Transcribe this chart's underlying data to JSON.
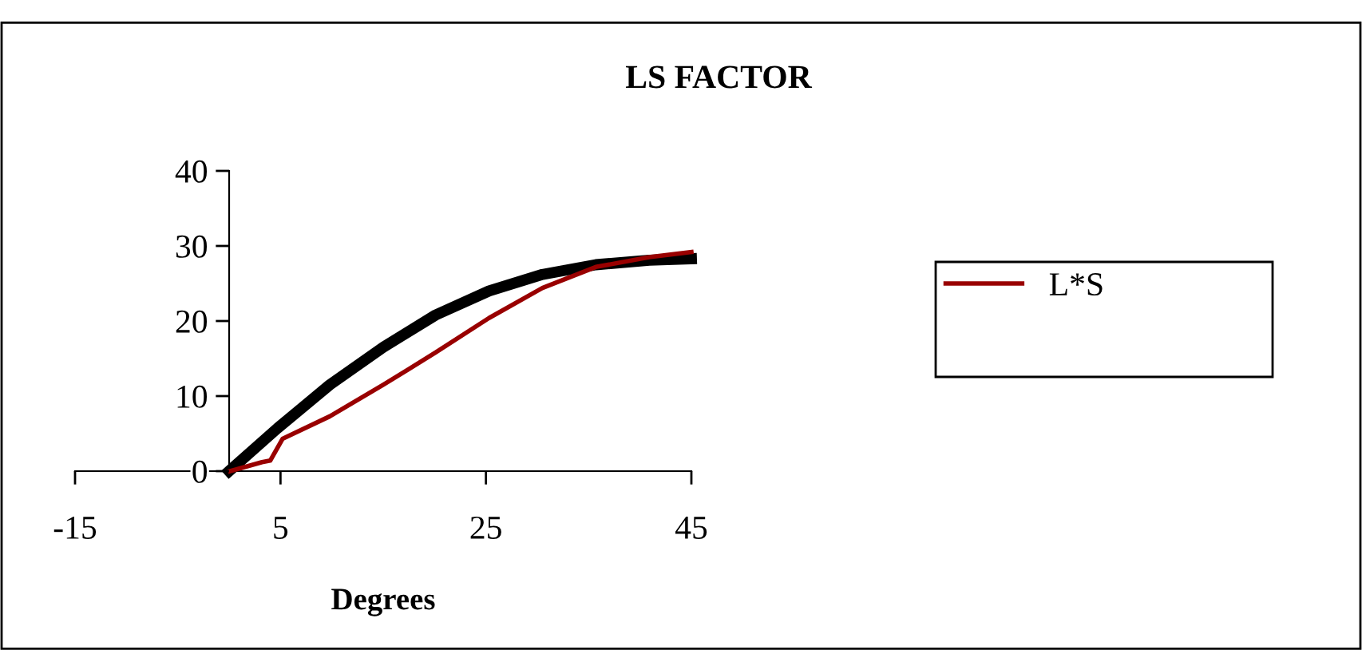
{
  "chart_data": {
    "type": "line",
    "title": "LS FACTOR",
    "xlabel": "Degrees",
    "xlim": [
      -15,
      45
    ],
    "xticks": [
      -15,
      5,
      25,
      45
    ],
    "ylim": [
      0,
      40
    ],
    "yticks": [
      0,
      10,
      20,
      30,
      40
    ],
    "grid": false,
    "legend": "right",
    "marker": "none",
    "line_style": "solid",
    "series": [
      {
        "name": "L*S",
        "color": "#990000",
        "x": [
          0.1,
          3.2,
          4,
          5.2,
          9.8,
          15,
          20.1,
          25.3,
          30.5,
          35.7,
          40.9,
          45
        ],
        "values": [
          0,
          1.2,
          1.4,
          4.3,
          7.3,
          11.5,
          15.8,
          20.4,
          24.4,
          27.2,
          28.5,
          29.2
        ]
      },
      {
        "color": "#000000",
        "x": [
          0,
          4.7,
          9.8,
          15,
          20.1,
          25.3,
          30.5,
          35.7,
          40.9,
          45
        ],
        "values": [
          0,
          5.7,
          11.5,
          16.5,
          20.8,
          24,
          26.2,
          27.5,
          28.1,
          28.3
        ]
      }
    ]
  }
}
